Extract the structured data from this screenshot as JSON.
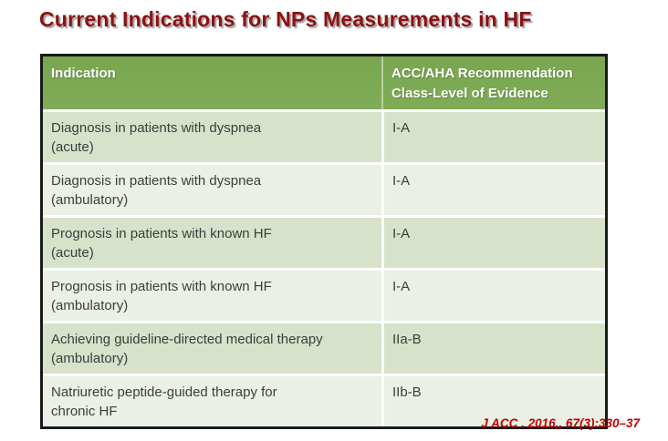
{
  "slide": {
    "title": "Current Indications for NPs Measurements in HF",
    "citation": "J ACC . 2016,, 67(3):330–37"
  },
  "table": {
    "header": {
      "col1": "Indication",
      "col2_line1": "ACC/AHA Recommendation",
      "col2_line2": "Class-Level of Evidence"
    },
    "rows": [
      {
        "indication_line1": "Diagnosis in patients with dyspnea",
        "indication_line2": "(acute)",
        "recommendation": "I-A"
      },
      {
        "indication_line1": "Diagnosis in patients with dyspnea",
        "indication_line2": "(ambulatory)",
        "recommendation": "I-A"
      },
      {
        "indication_line1": "Prognosis in patients with known HF",
        "indication_line2": "(acute)",
        "recommendation": "I-A"
      },
      {
        "indication_line1": "Prognosis in patients with known HF",
        "indication_line2": "(ambulatory)",
        "recommendation": "I-A"
      },
      {
        "indication_line1": "Achieving guideline-directed medical therapy",
        "indication_line2": "(ambulatory)",
        "recommendation": "IIa-B"
      },
      {
        "indication_line1": "Natriuretic peptide-guided therapy for",
        "indication_line2": "chronic HF",
        "recommendation": "IIb-B"
      }
    ]
  }
}
